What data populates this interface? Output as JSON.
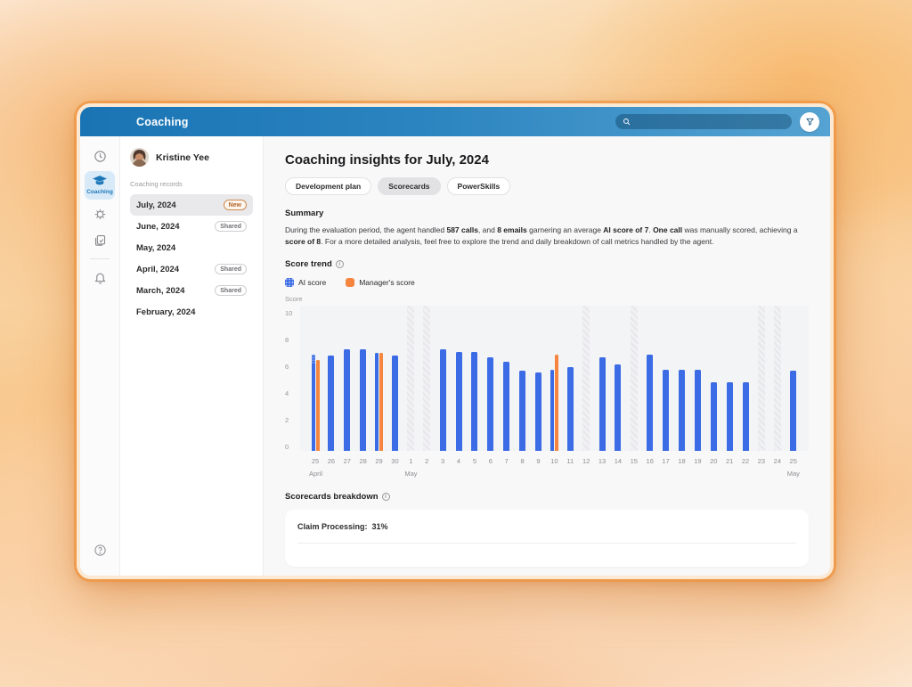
{
  "header": {
    "title": "Coaching",
    "search_placeholder": ""
  },
  "sidebar": {
    "items": [
      {
        "id": "history",
        "icon": "clock-icon",
        "label": "",
        "selected": false
      },
      {
        "id": "coaching",
        "icon": "graduation-cap-icon",
        "label": "Coaching",
        "selected": true
      },
      {
        "id": "settings",
        "icon": "gear-icon",
        "label": "",
        "selected": false
      },
      {
        "id": "reports",
        "icon": "documents-icon",
        "label": "",
        "selected": false
      },
      {
        "id": "notifications",
        "icon": "bell-icon",
        "label": "",
        "selected": false
      }
    ],
    "help_icon": "help-icon"
  },
  "records": {
    "user_name": "Kristine Yee",
    "section_label": "Coaching records",
    "items": [
      {
        "label": "July, 2024",
        "badge": "New",
        "selected": true
      },
      {
        "label": "June, 2024",
        "badge": "Shared",
        "selected": false
      },
      {
        "label": "May, 2024",
        "badge": "",
        "selected": false
      },
      {
        "label": "April, 2024",
        "badge": "Shared",
        "selected": false
      },
      {
        "label": "March, 2024",
        "badge": "Shared",
        "selected": false
      },
      {
        "label": "February, 2024",
        "badge": "",
        "selected": false
      }
    ]
  },
  "main": {
    "title": "Coaching insights for July, 2024",
    "tabs": [
      {
        "label": "Development plan",
        "selected": false
      },
      {
        "label": "Scorecards",
        "selected": true
      },
      {
        "label": "PowerSkills",
        "selected": false
      }
    ],
    "summary": {
      "heading": "Summary",
      "segments": [
        {
          "t": "During the evaluation period, the agent handled "
        },
        {
          "t": "587 calls",
          "b": true
        },
        {
          "t": ", and "
        },
        {
          "t": "8 emails",
          "b": true
        },
        {
          "t": " garnering an average "
        },
        {
          "t": "AI score of 7",
          "b": true
        },
        {
          "t": ". "
        },
        {
          "t": "One call",
          "b": true
        },
        {
          "t": " was manually scored, achieving a "
        },
        {
          "t": "score of 8",
          "b": true
        },
        {
          "t": ". For a more detailed analysis, feel free to explore the trend and daily breakdown of call metrics handled by the agent."
        }
      ]
    },
    "breakdown": {
      "heading": "Scorecards breakdown",
      "row_label": "Claim Processing:",
      "row_value": "31%"
    }
  },
  "chart_data": {
    "type": "bar",
    "title": "Score trend",
    "ylabel": "Score",
    "ylim": [
      0,
      10
    ],
    "yticks": [
      10,
      8,
      6,
      4,
      2,
      0
    ],
    "grid": false,
    "legend_position": "top-left",
    "colors": {
      "ai": "#3c6ce5",
      "manager": "#f5853f",
      "no_data": "#e7e7ea"
    },
    "legend": [
      {
        "name": "AI score",
        "patterned": true
      },
      {
        "name": "Manager's score",
        "patterned": false
      }
    ],
    "categories": [
      "25",
      "26",
      "27",
      "28",
      "29",
      "30",
      "1",
      "2",
      "3",
      "4",
      "5",
      "6",
      "7",
      "8",
      "9",
      "10",
      "11",
      "12",
      "13",
      "14",
      "15",
      "16",
      "17",
      "18",
      "19",
      "20",
      "21",
      "22",
      "23",
      "24",
      "25"
    ],
    "month_row": [
      {
        "index": 0,
        "label": "April"
      },
      {
        "index": 6,
        "label": "May"
      },
      {
        "index": 30,
        "label": "May"
      }
    ],
    "series": [
      {
        "name": "AI score",
        "values": [
          7.0,
          6.9,
          7.4,
          7.4,
          7.1,
          6.9,
          null,
          null,
          7.4,
          7.2,
          7.2,
          6.8,
          6.5,
          5.8,
          5.7,
          5.9,
          6.1,
          null,
          6.8,
          6.3,
          null,
          7.0,
          5.9,
          5.9,
          5.9,
          5.0,
          5.0,
          5.0,
          null,
          null,
          5.8
        ]
      },
      {
        "name": "Manager's score",
        "values": [
          6.6,
          null,
          null,
          null,
          7.1,
          null,
          null,
          null,
          null,
          null,
          null,
          null,
          null,
          null,
          null,
          7.0,
          null,
          null,
          null,
          null,
          null,
          null,
          null,
          null,
          null,
          null,
          null,
          null,
          null,
          null,
          null
        ]
      }
    ],
    "no_data_indices": [
      6,
      7,
      17,
      20,
      28,
      29
    ],
    "patterned_cap_index": 0
  }
}
